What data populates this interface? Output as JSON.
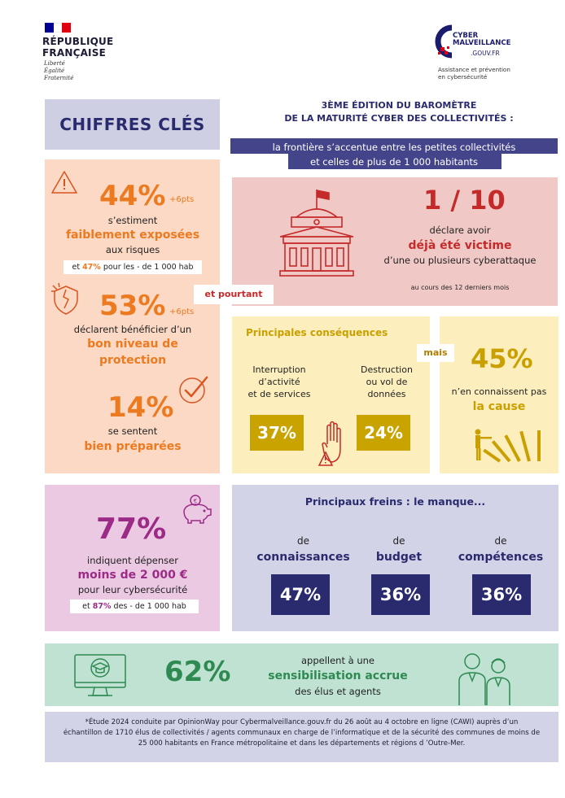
{
  "header": {
    "flag_colors": [
      "#000091",
      "#ffffff",
      "#e1000f"
    ],
    "rf_line1": "RÉPUBLIQUE",
    "rf_line2": "FRANÇAISE",
    "motto1": "Liberté",
    "motto2": "Égalité",
    "motto3": "Fraternité",
    "cm_line1": "CYBER",
    "cm_line2": "MALVEILLANCE",
    "cm_gouv": ".GOUV.FR",
    "cm_tag1": "Assistance et prévention",
    "cm_tag2": "en cybersécurité"
  },
  "title": {
    "chiffres": "CHIFFRES CLÉS",
    "baro1": "3ÈME ÉDITION DU BAROMÈTRE",
    "baro2": "DE LA MATURITÉ CYBER DES COLLECTIVITÉS :",
    "sub1": "la frontière s’accentue entre les petites collectivités",
    "sub2": "et celles de plus de 1 000 habitants"
  },
  "orange": {
    "s1_pct": "44%",
    "s1_pts": "+6pts",
    "s1_l1": "s’estiment",
    "s1_l2": "faiblement exposées",
    "s1_l3": "aux risques",
    "s1_note_pre": "et ",
    "s1_note_pct": "47%",
    "s1_note_post": " pour les - de 1 000 hab",
    "s2_pct": "53%",
    "s2_pts": "+6pts",
    "s2_l1": "déclarent bénéficier d’un",
    "s2_l2": "bon niveau de",
    "s2_l3": "protection",
    "s3_pct": "14%",
    "s3_l1": "se sentent",
    "s3_l2": "bien préparées"
  },
  "connector": {
    "pourtant": "et pourtant",
    "mais": "mais"
  },
  "red": {
    "pct": "1 / 10",
    "l1": "déclare avoir",
    "l2": "déjà été victime",
    "l3": "d’une ou plusieurs cyberattaque",
    "l4": "au cours des 12 derniers mois"
  },
  "yellow": {
    "title": "Principales conséquences",
    "c1_l1": "Interruption",
    "c1_l2": "d’activité",
    "c1_l3": "et de services",
    "c1_pct": "37%",
    "c2_l1": "Destruction",
    "c2_l2": "ou vol de",
    "c2_l3": "données",
    "c2_pct": "24%",
    "r_pct": "45%",
    "r_l1": "n’en connaissent pas",
    "r_l2": "la cause"
  },
  "pink": {
    "pct": "77%",
    "l1": "indiquent dépenser",
    "l2": "moins de 2 000 €",
    "l3": "pour leur cybersécurité",
    "note_pre": "et ",
    "note_pct": "87%",
    "note_post": " des - de 1 000 hab"
  },
  "freins": {
    "title": "Principaux freins : le manque...",
    "items": [
      {
        "pre": "de",
        "label": "connaissances",
        "pct": "47%"
      },
      {
        "pre": "de",
        "label": "budget",
        "pct": "36%"
      },
      {
        "pre": "de",
        "label": "compétences",
        "pct": "36%"
      }
    ]
  },
  "green": {
    "pct": "62%",
    "l1": "appellent à une",
    "l2": "sensibilisation accrue",
    "l3": "des élus et agents"
  },
  "footnote": {
    "l1": "*Étude 2024 conduite par OpinionWay pour Cybermalveillance.gouv.fr du 26 août au 4 octobre en ligne (CAWI) auprès d’un",
    "l2": "échantillon de 1710 élus de collectivités / agents communaux en charge de l’informatique et de la sécurité des communes de moins de",
    "l3": "25 000 habitants en France métropolitaine et dans les départements et régions d ’Outre-Mer."
  }
}
